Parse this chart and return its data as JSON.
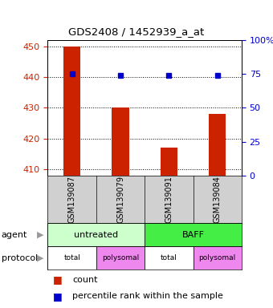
{
  "title": "GDS2408 / 1452939_a_at",
  "samples": [
    "GSM139087",
    "GSM139079",
    "GSM139091",
    "GSM139084"
  ],
  "bar_values": [
    450,
    430,
    417,
    428
  ],
  "percentile_values": [
    75,
    74,
    74,
    74
  ],
  "ylim_left": [
    408,
    452
  ],
  "ylim_right": [
    0,
    100
  ],
  "left_ticks": [
    410,
    420,
    430,
    440,
    450
  ],
  "right_ticks": [
    0,
    25,
    50,
    75,
    100
  ],
  "right_tick_labels": [
    "0",
    "25",
    "50",
    "75",
    "100%"
  ],
  "bar_color": "#cc2200",
  "percentile_color": "#0000cc",
  "bar_width": 0.35,
  "agent_groups": [
    {
      "label": "untreated",
      "color": "#ccffcc",
      "cols": [
        0,
        1
      ]
    },
    {
      "label": "BAFF",
      "color": "#44ee44",
      "cols": [
        2,
        3
      ]
    }
  ],
  "proto_labels": [
    "total",
    "polysomal",
    "total",
    "polysomal"
  ],
  "proto_colors": {
    "total": "#ffffff",
    "polysomal": "#ee88ee"
  },
  "xlabel_color": "#cc2200",
  "ylabel_right_color": "#0000cc",
  "background_color": "#ffffff",
  "plot_bg_color": "#ffffff",
  "sample_bg_color": "#d0d0d0"
}
